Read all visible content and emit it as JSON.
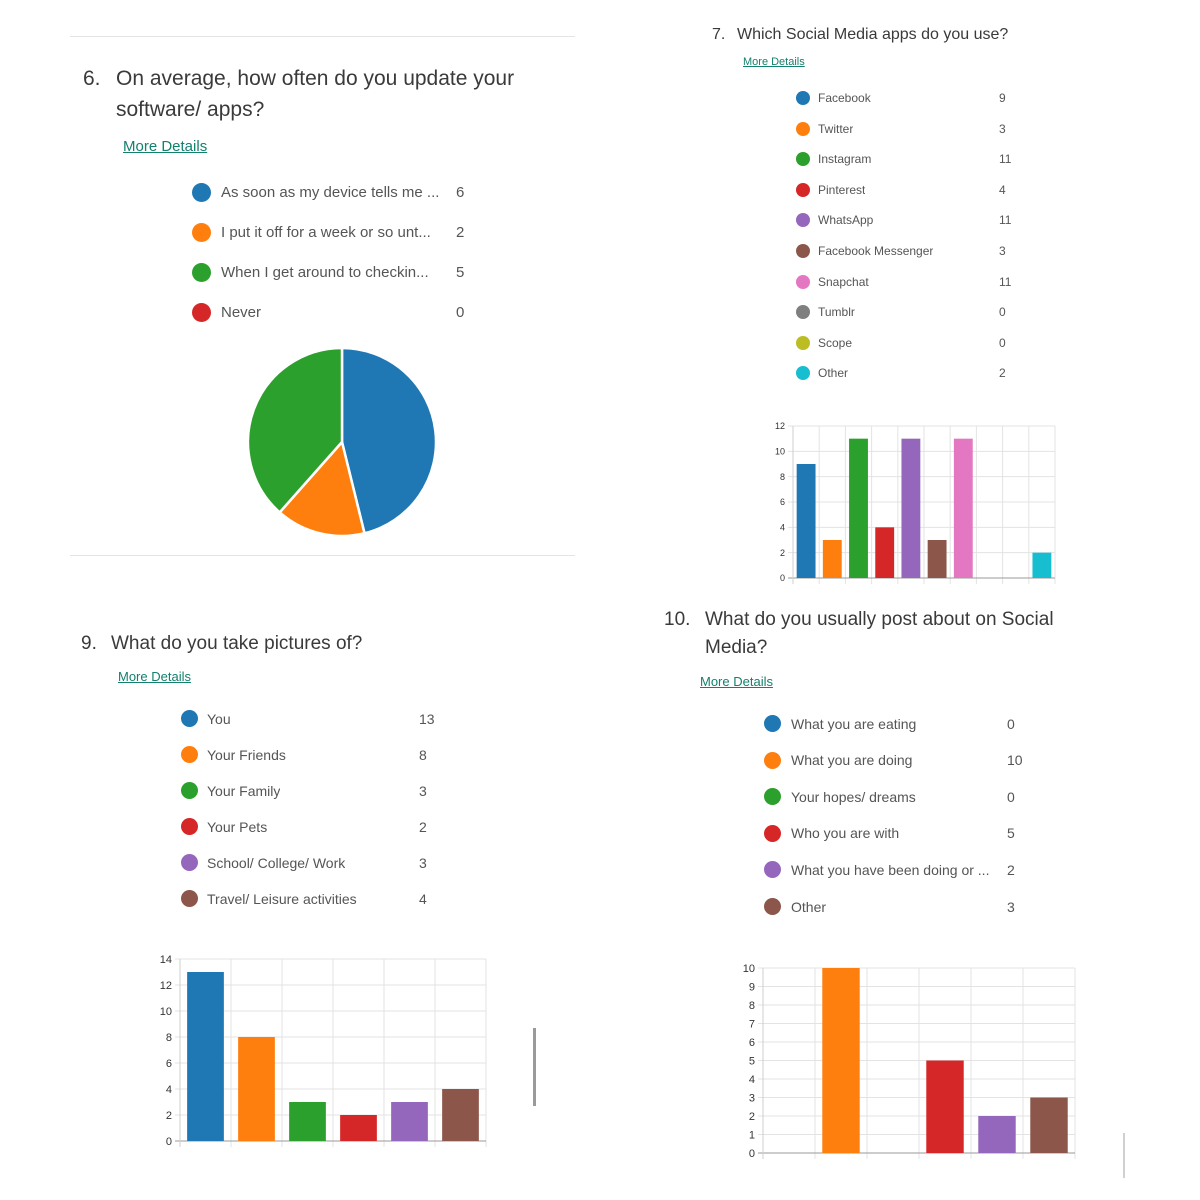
{
  "colors": [
    "#1f77b4",
    "#ff7f0e",
    "#2ca02c",
    "#d62728",
    "#9467bd",
    "#8c564b",
    "#e377c2",
    "#7f7f7f",
    "#bcbd22",
    "#17becf"
  ],
  "q6": {
    "number": "6.",
    "title_line1": "On average, how often do you update your",
    "title_line2": "software/ apps?",
    "details": "More Details"
  },
  "q7": {
    "number": "7.",
    "title": "Which Social Media apps do you use?",
    "details": "More Details"
  },
  "q9": {
    "number": "9.",
    "title": "What do you take pictures of?",
    "details": "More Details"
  },
  "q10": {
    "number": "10.",
    "title_line1": "What do you usually post about on Social",
    "title_line2": "Media?",
    "details": "More Details"
  },
  "chart_data": [
    {
      "id": "q6",
      "type": "pie",
      "categories": [
        "As soon as my device tells me ...",
        "I put it off for a week or so unt...",
        "When I get around to checkin...",
        "Never"
      ],
      "values": [
        6,
        2,
        5,
        0
      ]
    },
    {
      "id": "q7",
      "type": "bar",
      "categories": [
        "Facebook",
        "Twitter",
        "Instagram",
        "Pinterest",
        "WhatsApp",
        "Facebook Messenger",
        "Snapchat",
        "Tumblr",
        "Scope",
        "Other"
      ],
      "values": [
        9,
        3,
        11,
        4,
        11,
        3,
        11,
        0,
        0,
        2
      ],
      "ylim": [
        0,
        12
      ],
      "yticks": [
        "0",
        "2",
        "4",
        "6",
        "8",
        "10",
        "12"
      ],
      "grid": true
    },
    {
      "id": "q9",
      "type": "bar",
      "categories": [
        "You",
        "Your Friends",
        "Your Family",
        "Your Pets",
        "School/ College/ Work",
        "Travel/ Leisure activities"
      ],
      "values": [
        13,
        8,
        3,
        2,
        3,
        4
      ],
      "ylim": [
        0,
        14
      ],
      "yticks": [
        "0",
        "2",
        "4",
        "6",
        "8",
        "10",
        "12",
        "14"
      ],
      "grid": true
    },
    {
      "id": "q10",
      "type": "bar",
      "categories": [
        "What you are eating",
        "What you are doing",
        "Your hopes/ dreams",
        "Who you are with",
        "What you have been doing or ...",
        "Other"
      ],
      "values": [
        0,
        10,
        0,
        5,
        2,
        3
      ],
      "ylim": [
        0,
        10
      ],
      "yticks": [
        "0",
        "1",
        "2",
        "3",
        "4",
        "5",
        "6",
        "7",
        "8",
        "9",
        "10"
      ],
      "grid": true
    }
  ]
}
